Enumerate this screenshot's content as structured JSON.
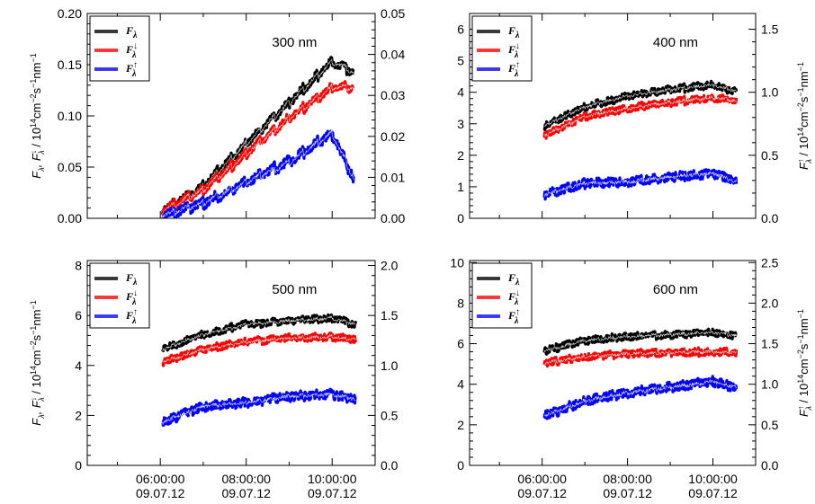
{
  "chart_data": [
    {
      "id": "p300",
      "type": "line",
      "label": "300 nm",
      "left_ylabel": "F_λ, F_λ^↓ / 10¹⁴cm⁻²s⁻¹nm⁻¹",
      "right_ylabel": "",
      "left_ylim": [
        0,
        0.2
      ],
      "left_ticks": [
        "0.00",
        "0.05",
        "0.10",
        "0.15",
        "0.20"
      ],
      "right_ylim": [
        0,
        0.05
      ],
      "right_ticks": [
        "0.00",
        "0.01",
        "0.02",
        "0.03",
        "0.04",
        "0.05"
      ],
      "x_ticks": [],
      "series": [
        {
          "name": "F_λ",
          "color": "#000000",
          "axis": "left",
          "start": 6.05,
          "end": 10.5,
          "x": [
            6.05,
            7.0,
            8.0,
            9.0,
            10.0,
            10.5
          ],
          "y": [
            0.005,
            0.028,
            0.07,
            0.11,
            0.15,
            0.14
          ]
        },
        {
          "name": "F_λ^↓",
          "color": "#ff0000",
          "axis": "left",
          "start": 6.05,
          "end": 10.5,
          "x": [
            6.05,
            7.0,
            8.0,
            9.0,
            10.0,
            10.5
          ],
          "y": [
            0.004,
            0.025,
            0.06,
            0.095,
            0.125,
            0.125
          ]
        },
        {
          "name": "F_λ^↑",
          "color": "#0000ff",
          "axis": "right",
          "start": 6.05,
          "end": 10.5,
          "x": [
            6.05,
            7.0,
            8.0,
            9.0,
            10.0,
            10.5
          ],
          "y": [
            0.0,
            0.003,
            0.008,
            0.013,
            0.02,
            0.009
          ]
        }
      ]
    },
    {
      "id": "p400",
      "type": "line",
      "label": "400 nm",
      "left_ylabel": "",
      "right_ylabel": "F_λ^↑ / 10¹⁴cm⁻²s⁻¹nm⁻¹",
      "left_ylim": [
        0,
        6.5
      ],
      "left_ticks": [
        "0",
        "1",
        "2",
        "3",
        "4",
        "5",
        "6"
      ],
      "right_ylim": [
        0,
        1.625
      ],
      "right_ticks": [
        "0.0",
        "0.5",
        "1.0",
        "1.5"
      ],
      "x_ticks": [],
      "series": [
        {
          "name": "F_λ",
          "color": "#000000",
          "axis": "left",
          "start": 6.05,
          "end": 10.55,
          "x": [
            6.05,
            7.0,
            8.0,
            9.0,
            10.0,
            10.55
          ],
          "y": [
            2.9,
            3.5,
            3.85,
            4.05,
            4.2,
            4.0
          ]
        },
        {
          "name": "F_λ^↓",
          "color": "#ff0000",
          "axis": "left",
          "start": 6.05,
          "end": 10.55,
          "x": [
            6.05,
            7.0,
            8.0,
            9.0,
            10.0,
            10.55
          ],
          "y": [
            2.6,
            3.2,
            3.45,
            3.65,
            3.8,
            3.7
          ]
        },
        {
          "name": "F_λ^↑",
          "color": "#0000ff",
          "axis": "right",
          "start": 6.05,
          "end": 10.55,
          "x": [
            6.05,
            7.0,
            8.0,
            9.0,
            10.0,
            10.55
          ],
          "y": [
            0.18,
            0.27,
            0.28,
            0.32,
            0.35,
            0.28
          ]
        }
      ]
    },
    {
      "id": "p500",
      "type": "line",
      "label": "500 nm",
      "left_ylabel": "F_λ, F_λ^↓ / 10¹⁴cm⁻²s⁻¹nm⁻¹",
      "right_ylabel": "",
      "left_ylim": [
        0,
        8.2
      ],
      "left_ticks": [
        "0",
        "2",
        "4",
        "6",
        "8"
      ],
      "right_ylim": [
        0,
        2.05
      ],
      "right_ticks": [
        "0.0",
        "0.5",
        "1.0",
        "1.5",
        "2.0"
      ],
      "x_ticks": [
        {
          "pos": 6.0,
          "time": "06:00:00",
          "date": "09.07.12"
        },
        {
          "pos": 8.0,
          "time": "08:00:00",
          "date": "09.07.12"
        },
        {
          "pos": 10.0,
          "time": "10:00:00",
          "date": "09.07.12"
        }
      ],
      "series": [
        {
          "name": "F_λ",
          "color": "#000000",
          "axis": "left",
          "start": 6.05,
          "end": 10.55,
          "x": [
            6.05,
            7.0,
            8.0,
            9.0,
            10.0,
            10.55
          ],
          "y": [
            4.6,
            5.2,
            5.6,
            5.75,
            5.85,
            5.6
          ]
        },
        {
          "name": "F_λ^↓",
          "color": "#ff0000",
          "axis": "left",
          "start": 6.05,
          "end": 10.55,
          "x": [
            6.05,
            7.0,
            8.0,
            9.0,
            10.0,
            10.55
          ],
          "y": [
            4.1,
            4.6,
            4.9,
            5.05,
            5.1,
            5.0
          ]
        },
        {
          "name": "F_λ^↑",
          "color": "#0000ff",
          "axis": "right",
          "start": 6.05,
          "end": 10.55,
          "x": [
            6.05,
            7.0,
            8.0,
            9.0,
            10.0,
            10.55
          ],
          "y": [
            0.42,
            0.58,
            0.62,
            0.68,
            0.7,
            0.65
          ]
        }
      ]
    },
    {
      "id": "p600",
      "type": "line",
      "label": "600 nm",
      "left_ylabel": "",
      "right_ylabel": "F_λ^↑ / 10¹⁴cm⁻²s⁻¹nm⁻¹",
      "left_ylim": [
        0,
        10.1
      ],
      "left_ticks": [
        "0",
        "2",
        "4",
        "6",
        "8",
        "10"
      ],
      "right_ylim": [
        0,
        2.525
      ],
      "right_ticks": [
        "0.0",
        "0.5",
        "1.0",
        "1.5",
        "2.0",
        "2.5"
      ],
      "x_ticks": [
        {
          "pos": 6.0,
          "time": "06:00:00",
          "date": "09.07.12"
        },
        {
          "pos": 8.0,
          "time": "08:00:00",
          "date": "09.07.12"
        },
        {
          "pos": 10.0,
          "time": "10:00:00",
          "date": "09.07.12"
        }
      ],
      "series": [
        {
          "name": "F_λ",
          "color": "#000000",
          "axis": "left",
          "start": 6.05,
          "end": 10.55,
          "x": [
            6.05,
            7.0,
            8.0,
            9.0,
            10.0,
            10.55
          ],
          "y": [
            5.6,
            6.1,
            6.3,
            6.4,
            6.5,
            6.35
          ]
        },
        {
          "name": "F_λ^↓",
          "color": "#ff0000",
          "axis": "left",
          "start": 6.05,
          "end": 10.55,
          "x": [
            6.05,
            7.0,
            8.0,
            9.0,
            10.0,
            10.55
          ],
          "y": [
            5.0,
            5.3,
            5.45,
            5.5,
            5.55,
            5.5
          ]
        },
        {
          "name": "F_λ^↑",
          "color": "#0000ff",
          "axis": "right",
          "start": 6.05,
          "end": 10.55,
          "x": [
            6.05,
            7.0,
            8.0,
            9.0,
            10.0,
            10.55
          ],
          "y": [
            0.6,
            0.78,
            0.88,
            0.95,
            1.02,
            0.95
          ]
        }
      ]
    }
  ],
  "legend": [
    {
      "base": "F",
      "sup": "",
      "sub": "λ",
      "color": "#000000"
    },
    {
      "base": "F",
      "sup": "↓",
      "sub": "λ",
      "color": "#ff0000"
    },
    {
      "base": "F",
      "sup": "↑",
      "sub": "λ",
      "color": "#0000ff"
    }
  ]
}
